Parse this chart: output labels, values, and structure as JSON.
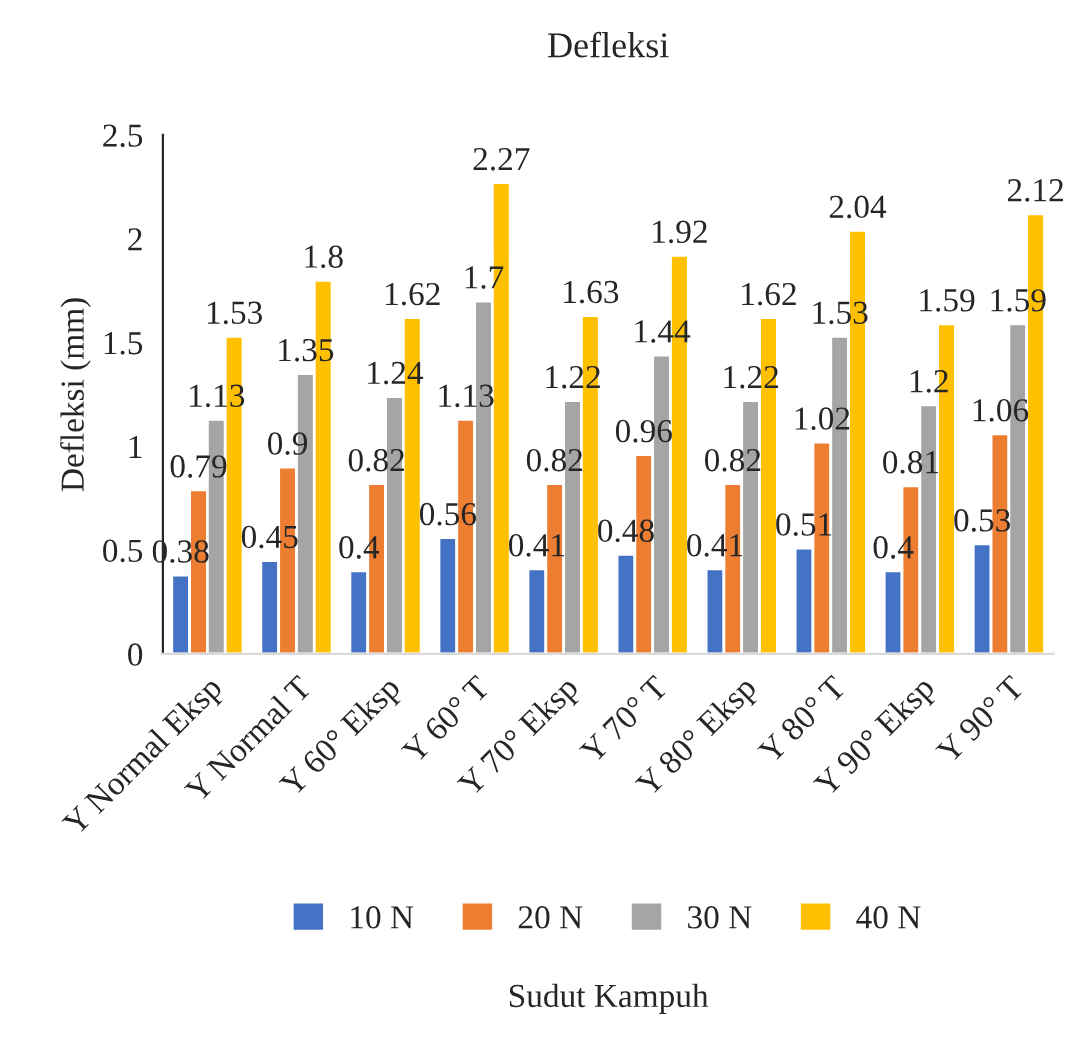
{
  "chart_data": {
    "type": "bar",
    "title": "Defleksi",
    "xlabel": "Sudut Kampuh",
    "ylabel": "Defleksi (mm)",
    "categories": [
      "Y Normal Eksp",
      "Y Normal T",
      "Y 60° Eksp",
      "Y 60° T",
      "Y 70° Eksp",
      "Y 70° T",
      "Y 80° Eksp",
      "Y 80° T",
      "Y 90° Eksp",
      "Y 90° T"
    ],
    "series": [
      {
        "name": "10 N",
        "color": "#4472c4",
        "values": [
          0.38,
          0.45,
          0.4,
          0.56,
          0.41,
          0.48,
          0.41,
          0.51,
          0.4,
          0.53
        ]
      },
      {
        "name": "20 N",
        "color": "#ed7d31",
        "values": [
          0.79,
          0.9,
          0.82,
          1.13,
          0.82,
          0.96,
          0.82,
          1.02,
          0.81,
          1.06
        ]
      },
      {
        "name": "30 N",
        "color": "#a5a5a5",
        "values": [
          1.13,
          1.35,
          1.24,
          1.7,
          1.22,
          1.44,
          1.22,
          1.53,
          1.2,
          1.59
        ]
      },
      {
        "name": "40 N",
        "color": "#ffc000",
        "values": [
          1.53,
          1.8,
          1.62,
          2.27,
          1.63,
          1.92,
          1.62,
          2.04,
          1.59,
          2.12
        ]
      }
    ],
    "ylim": [
      0,
      2.5
    ],
    "yticks": [
      0,
      0.5,
      1,
      1.5,
      2,
      2.5
    ],
    "grid": false,
    "legend": "bottom",
    "data_labels": true
  }
}
